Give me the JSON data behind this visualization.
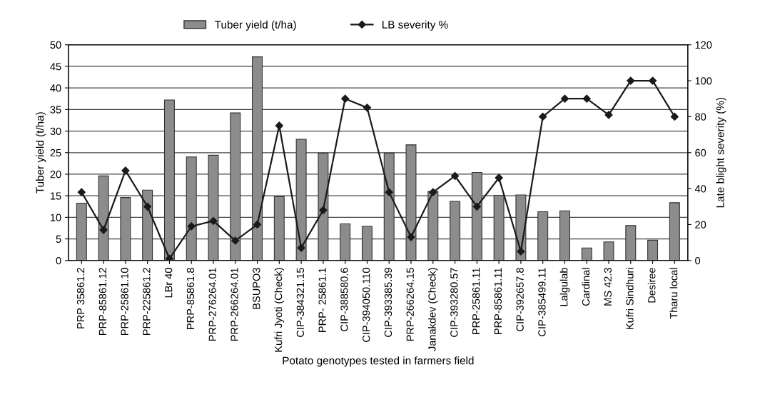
{
  "chart_data": {
    "type": "bar",
    "xlabel": "Potato genotypes tested in farmers field",
    "ylabel": "Tuber yield (t/ha)",
    "y2label": "Late blight severity (%)",
    "categories": [
      "PRP 35861.2",
      "PRP-85861.12",
      "PRP-25861.10",
      "PRP-225861.2",
      "LBr 40",
      "PRP-85861.8",
      "PRP-276264.01",
      "PRP-266264.01",
      "BSUPO3",
      "Kufri Jyoti (Check)",
      "CIP-384321.15",
      "PRP- 25861.1",
      "CIP-388580.6",
      "CIP-394050.110",
      "CIP-393385.39",
      "PRP-266264.15",
      "Janakdev (Check)",
      "CIP-393280.57",
      "PRP-25861.11",
      "PRP-85861.11",
      "CIP-392657.8",
      "CIP-385499.11",
      "Lalgulab",
      "Cardinal",
      "MS 42.3",
      "Kufri Sindhuri",
      "Desiree",
      "Tharu local"
    ],
    "series": [
      {
        "name": "Tuber yield (t/ha)",
        "color": "#8c8c8c",
        "values": [
          13.3,
          19.6,
          14.6,
          16.3,
          37.2,
          24.0,
          24.4,
          34.2,
          47.2,
          14.8,
          28.1,
          24.9,
          8.5,
          7.9,
          24.9,
          26.8,
          16.0,
          13.7,
          20.4,
          15.1,
          15.2,
          11.3,
          11.5,
          2.9,
          4.3,
          8.1,
          4.7,
          13.4
        ]
      },
      {
        "name": "LB severity %",
        "type": "line",
        "axis": "y2",
        "color": "#1a1a1a",
        "marker": "diamond",
        "values": [
          38,
          17,
          50,
          30,
          1,
          19,
          22,
          11,
          20,
          75,
          7,
          28,
          90,
          85,
          38,
          13,
          38,
          47,
          30,
          46,
          5,
          80,
          90,
          90,
          81,
          100,
          100,
          80
        ]
      }
    ],
    "ylim": [
      0,
      50
    ],
    "yticks": [
      0,
      5,
      10,
      15,
      20,
      25,
      30,
      35,
      40,
      45,
      50
    ],
    "y2lim": [
      0,
      120
    ],
    "y2ticks": [
      0,
      20,
      40,
      60,
      80,
      100,
      120
    ],
    "grid": "y",
    "legend": "top"
  }
}
